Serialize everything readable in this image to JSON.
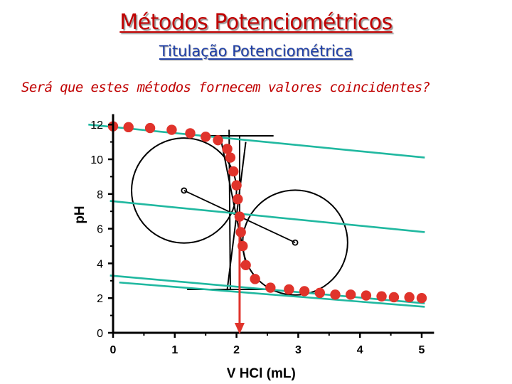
{
  "slide": {
    "title": "Métodos Potenciométricos",
    "subtitle": "Titulação Potenciométrica",
    "question": "Será que estes métodos fornecem valores coincidentes?"
  },
  "chart_data": {
    "type": "scatter",
    "xlabel": "V HCl (mL)",
    "ylabel": "pH",
    "xlim": [
      0,
      5.2
    ],
    "ylim": [
      0,
      12.6
    ],
    "x_ticks": [
      "0",
      "1",
      "2",
      "3",
      "4",
      "5"
    ],
    "y_ticks": [
      "0",
      "2",
      "4",
      "6",
      "8",
      "10",
      "12"
    ],
    "grid": false,
    "series": [
      {
        "color": "#e0332b",
        "points": [
          [
            0.0,
            11.9
          ],
          [
            0.25,
            11.85
          ],
          [
            0.6,
            11.8
          ],
          [
            0.95,
            11.7
          ],
          [
            1.25,
            11.5
          ],
          [
            1.5,
            11.3
          ],
          [
            1.7,
            11.1
          ],
          [
            1.85,
            10.6
          ],
          [
            1.9,
            10.1
          ],
          [
            1.95,
            9.3
          ],
          [
            2.0,
            8.5
          ],
          [
            2.02,
            7.7
          ],
          [
            2.05,
            6.7
          ],
          [
            2.07,
            5.8
          ],
          [
            2.1,
            5.0
          ],
          [
            2.15,
            3.9
          ],
          [
            2.3,
            3.1
          ],
          [
            2.55,
            2.6
          ],
          [
            2.85,
            2.5
          ],
          [
            3.1,
            2.4
          ],
          [
            3.35,
            2.3
          ],
          [
            3.6,
            2.2
          ],
          [
            3.85,
            2.2
          ],
          [
            4.1,
            2.15
          ],
          [
            4.35,
            2.1
          ],
          [
            4.55,
            2.05
          ],
          [
            4.8,
            2.05
          ],
          [
            5.0,
            2.0
          ]
        ]
      }
    ],
    "tangent_lines": [
      {
        "from": [
          -0.4,
          12.0
        ],
        "to": [
          5.05,
          10.1
        ]
      },
      {
        "from": [
          -0.05,
          7.6
        ],
        "to": [
          5.05,
          5.8
        ]
      },
      {
        "from": [
          -0.05,
          3.3
        ],
        "to": [
          5.05,
          1.7
        ]
      },
      {
        "from": [
          0.1,
          2.9
        ],
        "to": [
          5.05,
          1.5
        ]
      }
    ],
    "bisector_line": {
      "from": [
        1.15,
        8.2
      ],
      "to": [
        2.95,
        5.2
      ]
    },
    "circles": [
      {
        "center": [
          1.15,
          8.2
        ],
        "radius_x": 0.85
      },
      {
        "center": [
          2.95,
          5.2
        ],
        "radius_x": 0.85
      }
    ],
    "derivative_lines": [
      {
        "from": [
          1.4,
          11.35
        ],
        "to": [
          2.6,
          11.35
        ]
      },
      {
        "from": [
          1.2,
          2.5
        ],
        "to": [
          2.5,
          2.5
        ]
      },
      {
        "from": [
          1.88,
          11.7
        ],
        "to": [
          1.9,
          2.5
        ]
      },
      {
        "from": [
          2.05,
          11.35
        ],
        "to": [
          2.05,
          2.6
        ]
      },
      {
        "from": [
          1.75,
          11.1
        ],
        "to": [
          2.15,
          4.0
        ]
      },
      {
        "from": [
          1.85,
          2.5
        ],
        "to": [
          2.15,
          11.0
        ]
      }
    ],
    "equivalence_point": {
      "x": 2.05,
      "arrow_from_ph": 6.8
    },
    "colors": {
      "points": "#e0332b",
      "tangents": "#20b8a0",
      "arrow": "#e0332b",
      "construction": "#000000"
    }
  }
}
